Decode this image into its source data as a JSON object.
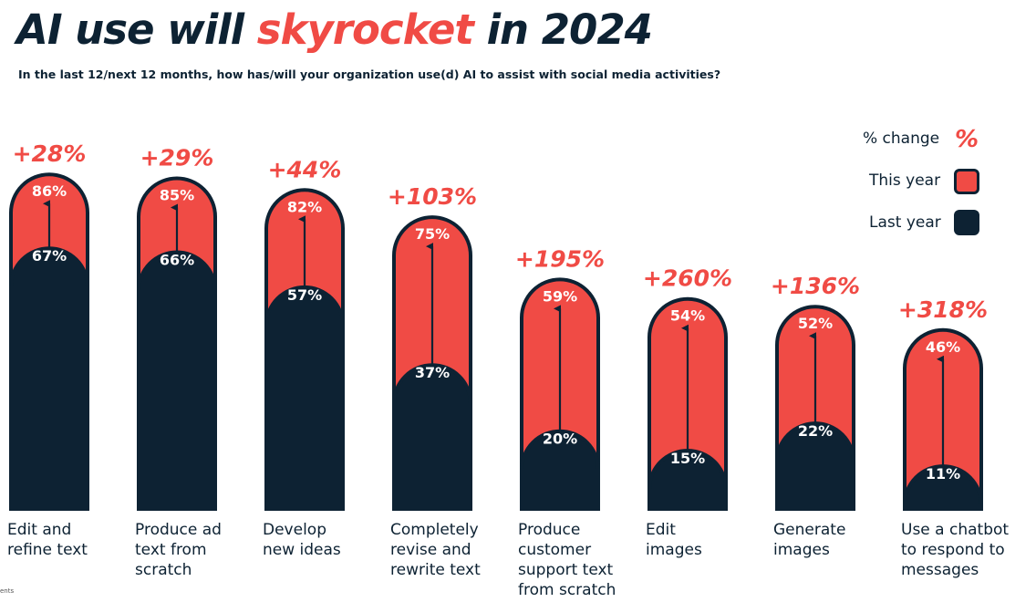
{
  "header": {
    "title_pre": "AI use will ",
    "title_highlight": "skyrocket",
    "title_post": " in 2024",
    "subtitle": "In the last 12/next 12 months, how has/will your organization use(d) AI to assist with social media activities?"
  },
  "legend": {
    "change_label": "% change",
    "change_symbol": "%",
    "this_year_label": "This year",
    "last_year_label": "Last year"
  },
  "colors": {
    "this_year": "#f04b45",
    "last_year": "#0d2233",
    "change": "#f04b45"
  },
  "footnote": "ents",
  "chart_data": {
    "type": "bar",
    "title": "AI use will skyrocket in 2024",
    "ylim": [
      0,
      100
    ],
    "unit": "%",
    "categories": [
      "Edit and\nrefine text",
      "Produce ad\ntext from\nscratch",
      "Develop\nnew ideas",
      "Completely\nrevise and\nrewrite text",
      "Produce\ncustomer\nsupport text\nfrom scratch",
      "Edit\nimages",
      "Generate\nimages",
      "Use a chatbot\nto respond to\nmessages"
    ],
    "series": [
      {
        "name": "Last year",
        "values": [
          67,
          66,
          57,
          37,
          20,
          15,
          22,
          11
        ]
      },
      {
        "name": "This year",
        "values": [
          86,
          85,
          82,
          75,
          59,
          54,
          52,
          46
        ]
      }
    ],
    "change_labels": [
      "+28%",
      "+29%",
      "+44%",
      "+103%",
      "+195%",
      "+260%",
      "+136%",
      "+318%"
    ]
  }
}
